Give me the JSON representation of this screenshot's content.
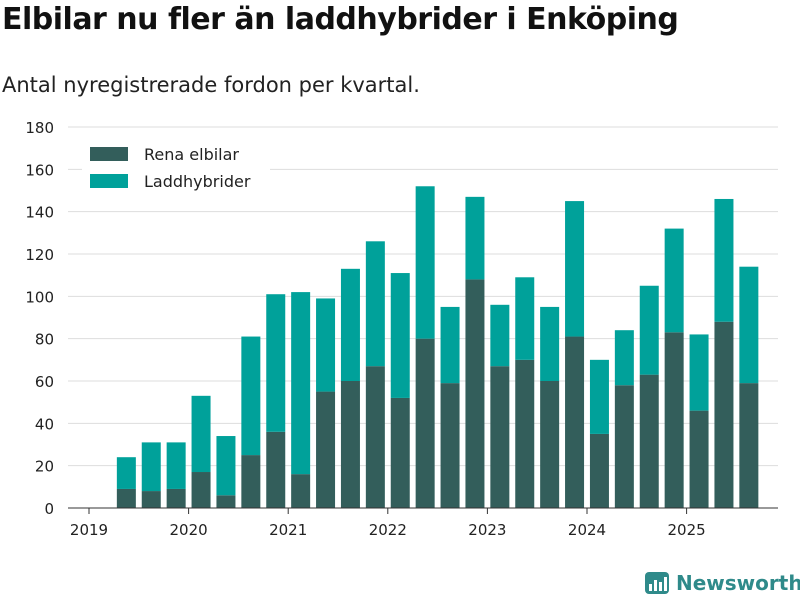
{
  "title": "Elbilar nu fler än laddhybrider i Enköping",
  "subtitle": "Antal nyregistrerade fordon per kvartal.",
  "brand": "Newsworthy",
  "colors": {
    "rena_elbilar": "#335e5b",
    "laddhybrider": "#00a19a",
    "grid": "#dddddd",
    "axis": "#333333",
    "brand": "#2f8a8a"
  },
  "chart_data": {
    "type": "bar",
    "stacked": true,
    "x_tick_labels": [
      "2019",
      "2020",
      "2021",
      "2022",
      "2023",
      "2024",
      "2025"
    ],
    "categories": [
      "2019 Q2",
      "2019 Q3",
      "2019 Q4",
      "2020 Q1",
      "2020 Q2",
      "2020 Q3",
      "2020 Q4",
      "2021 Q1",
      "2021 Q2",
      "2021 Q3",
      "2021 Q4",
      "2022 Q1",
      "2022 Q2",
      "2022 Q3",
      "2022 Q4",
      "2023 Q1",
      "2023 Q2",
      "2023 Q3",
      "2023 Q4",
      "2024 Q1",
      "2024 Q2",
      "2024 Q3",
      "2024 Q4",
      "2025 Q1",
      "2025 Q2",
      "2025 Q3"
    ],
    "series": [
      {
        "name": "Rena elbilar",
        "values": [
          9,
          8,
          9,
          17,
          6,
          25,
          36,
          16,
          55,
          60,
          67,
          52,
          80,
          59,
          108,
          67,
          70,
          60,
          81,
          35,
          58,
          63,
          83,
          46,
          88,
          59
        ]
      },
      {
        "name": "Laddhybrider",
        "values": [
          15,
          23,
          22,
          36,
          28,
          56,
          65,
          86,
          44,
          53,
          59,
          59,
          72,
          36,
          39,
          29,
          39,
          35,
          64,
          35,
          26,
          42,
          49,
          36,
          58,
          55
        ]
      }
    ],
    "ylim": [
      0,
      180
    ],
    "y_ticks": [
      0,
      20,
      40,
      60,
      80,
      100,
      120,
      140,
      160,
      180
    ],
    "xlabel": "",
    "ylabel": "",
    "legend": "top-left",
    "grid": true
  }
}
